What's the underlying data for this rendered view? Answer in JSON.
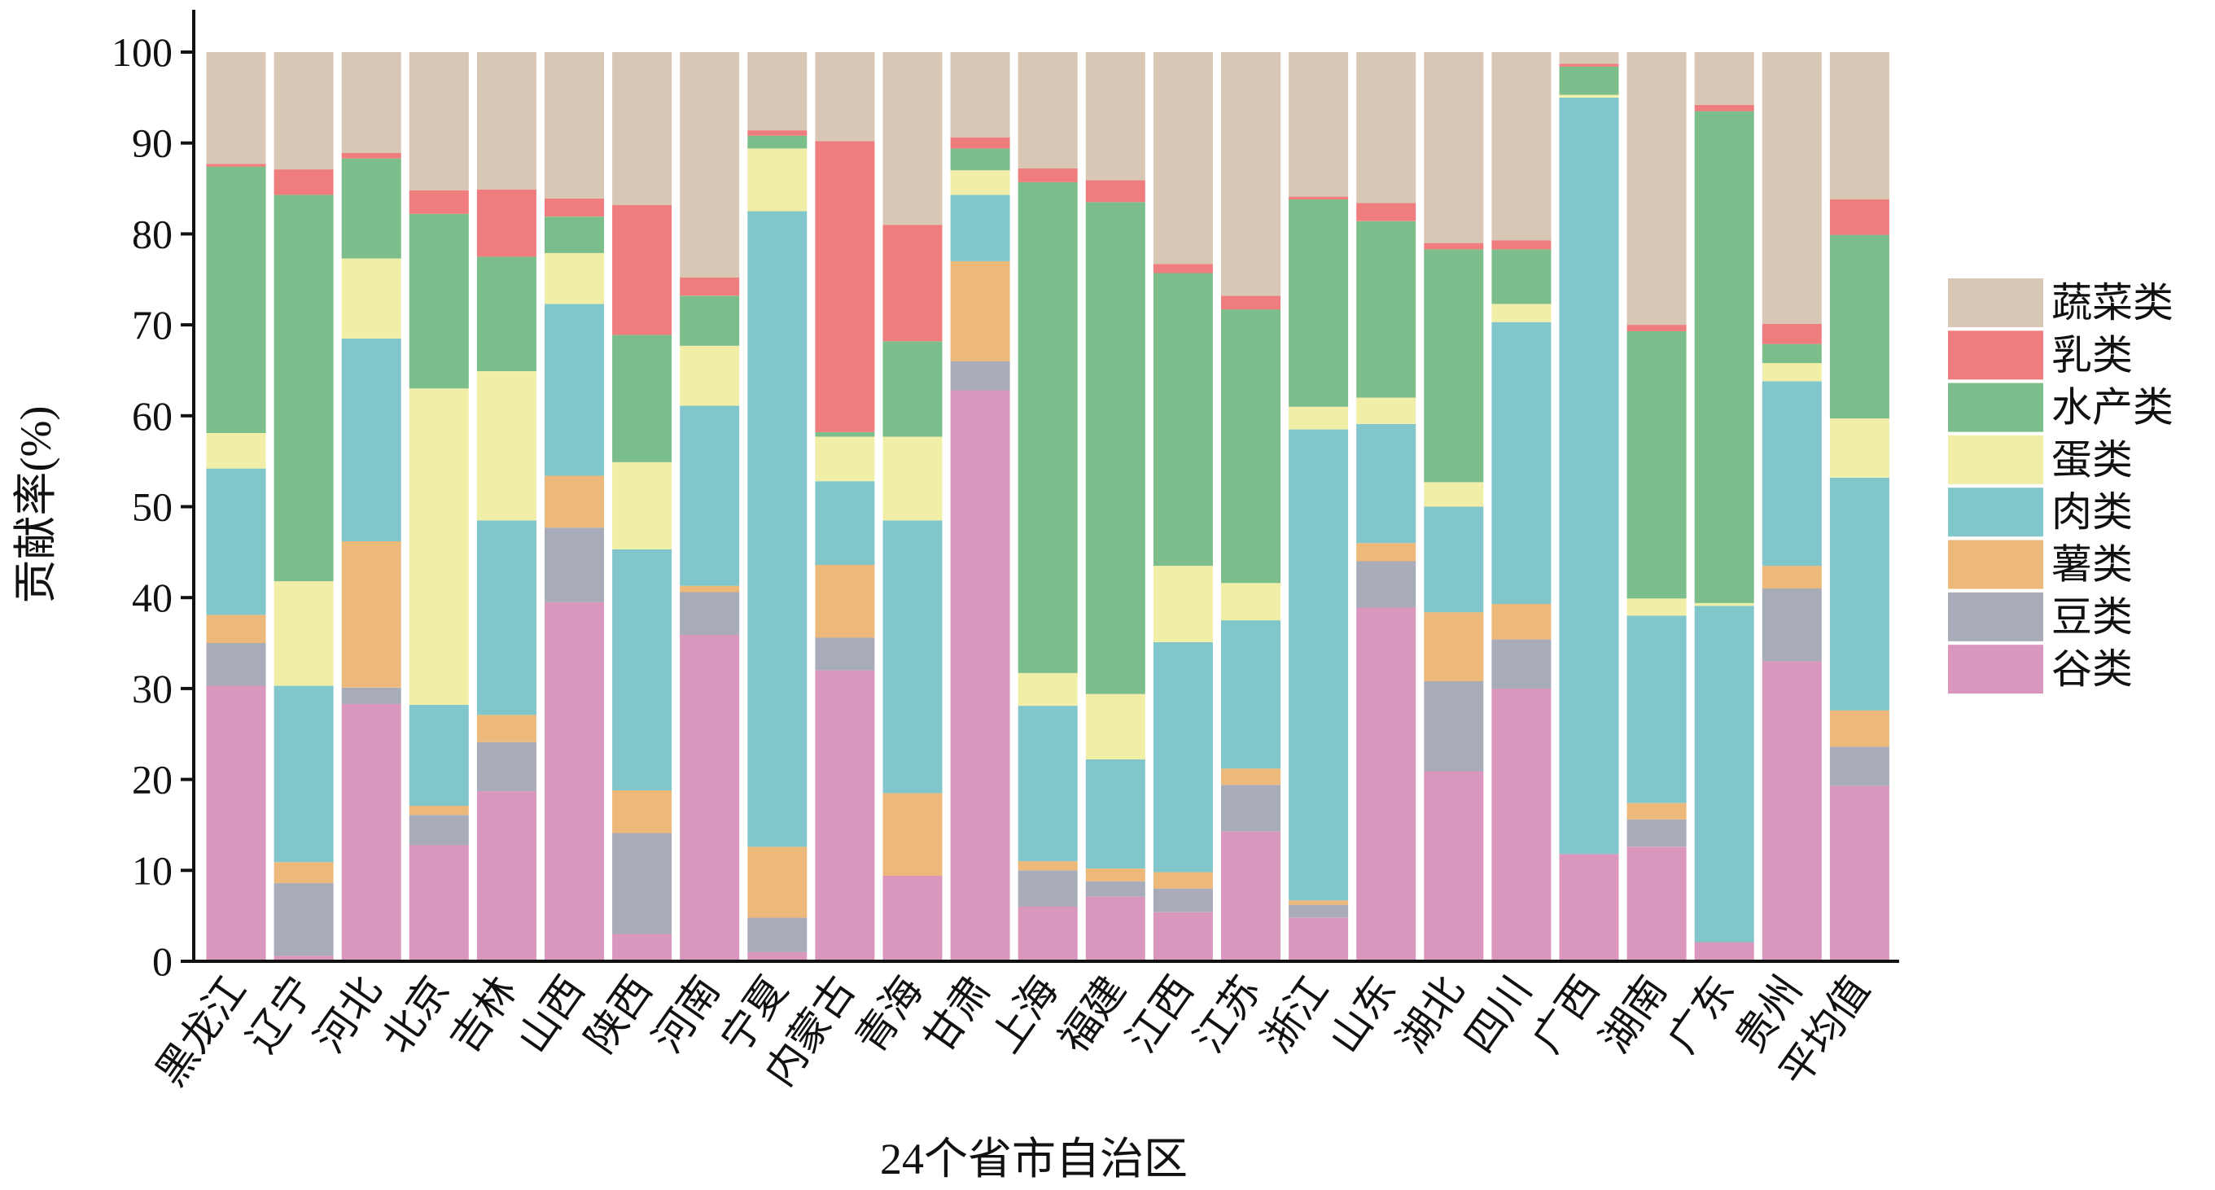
{
  "chart_data": {
    "type": "bar",
    "stacked": true,
    "title": "",
    "xlabel": "24个省市自治区",
    "ylabel": "贡献率(%)",
    "ylim": [
      0,
      100
    ],
    "yticks": [
      0,
      10,
      20,
      30,
      40,
      50,
      60,
      70,
      80,
      90,
      100
    ],
    "grid": false,
    "legend_position": "right",
    "categories": [
      "黑龙江",
      "辽宁",
      "河北",
      "北京",
      "吉林",
      "山西",
      "陕西",
      "河南",
      "宁夏",
      "内蒙古",
      "青海",
      "甘肃",
      "上海",
      "福建",
      "江西",
      "江苏",
      "浙江",
      "山东",
      "湖北",
      "四川",
      "广西",
      "湖南",
      "广东",
      "贵州",
      "平均值"
    ],
    "series": [
      {
        "name": "谷类",
        "color": "#da97be",
        "values": [
          30.3,
          0.6,
          28.3,
          12.8,
          18.7,
          39.5,
          3.0,
          35.9,
          1.0,
          32.0,
          9.4,
          62.8,
          6.0,
          7.1,
          5.4,
          14.3,
          4.8,
          38.9,
          20.9,
          30.0,
          11.8,
          12.6,
          2.1,
          33.0,
          19.3
        ]
      },
      {
        "name": "豆类",
        "color": "#a8abb8",
        "values": [
          4.7,
          8.0,
          1.8,
          3.3,
          5.4,
          8.2,
          11.1,
          4.7,
          3.8,
          3.6,
          0.0,
          3.2,
          4.0,
          1.7,
          2.6,
          5.1,
          1.4,
          5.1,
          9.9,
          5.4,
          0.0,
          3.0,
          0.0,
          8.0,
          4.3
        ]
      },
      {
        "name": "薯类",
        "color": "#ecb97a",
        "values": [
          3.1,
          2.3,
          16.1,
          1.0,
          3.0,
          5.7,
          4.7,
          0.7,
          7.8,
          8.0,
          9.1,
          11.0,
          1.0,
          1.4,
          1.8,
          1.8,
          0.5,
          2.0,
          7.6,
          3.9,
          0.0,
          1.8,
          0.0,
          2.5,
          4.0
        ]
      },
      {
        "name": "肉类",
        "color": "#81c6cb",
        "values": [
          16.1,
          19.4,
          22.3,
          11.1,
          21.4,
          18.9,
          26.5,
          19.8,
          69.9,
          9.2,
          30.0,
          7.3,
          17.1,
          12.0,
          25.3,
          16.3,
          51.8,
          13.1,
          11.6,
          31.0,
          83.2,
          20.6,
          37.0,
          20.3,
          25.6
        ]
      },
      {
        "name": "蛋类",
        "color": "#f1efa7",
        "values": [
          3.9,
          11.5,
          8.8,
          34.8,
          16.4,
          5.6,
          9.6,
          6.6,
          6.9,
          4.9,
          9.2,
          2.7,
          3.6,
          7.2,
          8.4,
          4.1,
          2.5,
          2.9,
          2.7,
          2.0,
          0.3,
          1.9,
          0.3,
          2.0,
          6.5
        ]
      },
      {
        "name": "水产类",
        "color": "#7cbd8c",
        "values": [
          29.3,
          42.5,
          11.0,
          19.2,
          12.6,
          4.0,
          14.0,
          5.5,
          1.4,
          0.5,
          10.5,
          2.4,
          54.0,
          54.1,
          32.2,
          30.1,
          22.8,
          19.4,
          25.6,
          6.0,
          3.1,
          29.4,
          54.1,
          2.1,
          20.2
        ]
      },
      {
        "name": "乳类",
        "color": "#f07d7d",
        "values": [
          0.3,
          2.8,
          0.6,
          2.6,
          7.4,
          2.0,
          14.3,
          2.0,
          0.6,
          32.0,
          12.8,
          1.2,
          1.5,
          2.4,
          1.0,
          1.5,
          0.3,
          2.0,
          0.7,
          1.0,
          0.3,
          0.7,
          0.7,
          2.2,
          3.9
        ]
      },
      {
        "name": "蔬菜类",
        "color": "#d8c7b5",
        "values": [
          12.3,
          12.9,
          11.1,
          15.2,
          15.1,
          16.1,
          16.8,
          24.8,
          8.6,
          9.8,
          19.0,
          9.4,
          12.8,
          14.1,
          23.3,
          26.8,
          15.9,
          16.6,
          21.0,
          20.7,
          1.3,
          30.0,
          5.8,
          29.9,
          16.2
        ]
      }
    ]
  }
}
